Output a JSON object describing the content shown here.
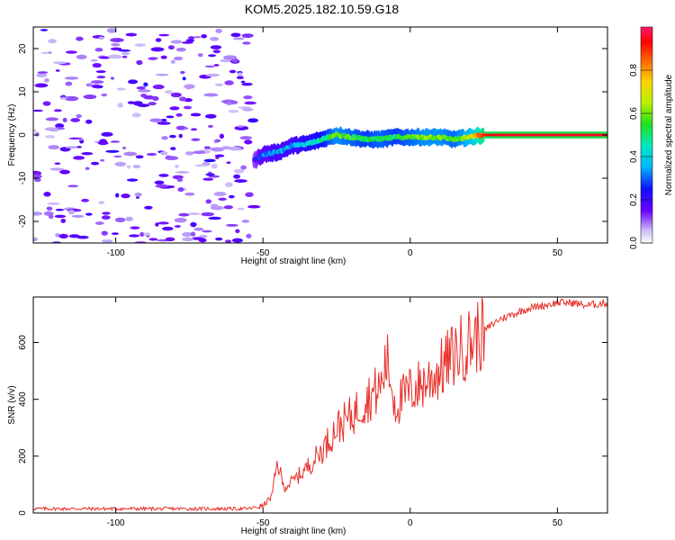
{
  "title": "KOM5.2025.182.10.59.G18",
  "chart_data": [
    {
      "type": "heatmap",
      "title": "",
      "xlabel": "Height of straight line (km)",
      "ylabel": "Frequency (Hz)",
      "xlim": [
        -128,
        67
      ],
      "ylim": [
        -25,
        25
      ],
      "xticks": [
        -100,
        -50,
        0,
        50
      ],
      "yticks": [
        -20,
        -10,
        0,
        10,
        20
      ],
      "colorbar": {
        "label": "Normalized spectral amplitude",
        "range": [
          0,
          1
        ],
        "ticks": [
          0.0,
          0.2,
          0.4,
          0.6,
          0.8
        ],
        "colormap": "hsv-rainbow"
      },
      "ridge": {
        "description_points_x": [
          -53,
          -50,
          -45,
          -40,
          -35,
          -30,
          -25,
          -20,
          -15,
          -10,
          -5,
          0,
          5,
          10,
          15,
          20,
          25,
          30,
          40,
          50,
          60,
          67
        ],
        "frequency_hz": [
          -6,
          -4.5,
          -4,
          -2.5,
          -2,
          -1,
          0,
          -0.5,
          -1,
          -1,
          -0.5,
          -0.5,
          -0.5,
          -0.5,
          -1,
          -0.5,
          0,
          0,
          0,
          0,
          0,
          0
        ],
        "amplitude": [
          0.2,
          0.3,
          0.35,
          0.35,
          0.4,
          0.45,
          0.6,
          0.55,
          0.5,
          0.55,
          0.5,
          0.55,
          0.6,
          0.6,
          0.55,
          0.65,
          0.9,
          0.95,
          0.95,
          0.95,
          0.95,
          0.95
        ]
      },
      "noise_region_x": [
        -128,
        -53
      ],
      "noise_amplitude": [
        0.05,
        0.18
      ]
    },
    {
      "type": "line",
      "title": "",
      "xlabel": "Height of straight line (km)",
      "ylabel": "SNR (v/v)",
      "xlim": [
        -128,
        67
      ],
      "ylim": [
        0,
        760
      ],
      "xticks": [
        -100,
        -50,
        0,
        50
      ],
      "yticks": [
        0,
        200,
        400,
        600
      ],
      "line_color": "#e8302a",
      "series": [
        {
          "x": [
            -128,
            -110,
            -90,
            -70,
            -55,
            -50,
            -47,
            -45,
            -43,
            -40,
            -35,
            -30,
            -25,
            -20,
            -15,
            -10,
            -8,
            -5,
            0,
            5,
            10,
            15,
            20,
            25,
            30,
            35,
            40,
            45,
            50,
            55,
            60,
            67
          ],
          "values": [
            15,
            15,
            15,
            15,
            15,
            25,
            60,
            180,
            90,
            110,
            160,
            220,
            300,
            340,
            400,
            440,
            540,
            380,
            430,
            460,
            500,
            560,
            600,
            640,
            680,
            700,
            720,
            730,
            740,
            740,
            730,
            740
          ]
        }
      ]
    }
  ]
}
